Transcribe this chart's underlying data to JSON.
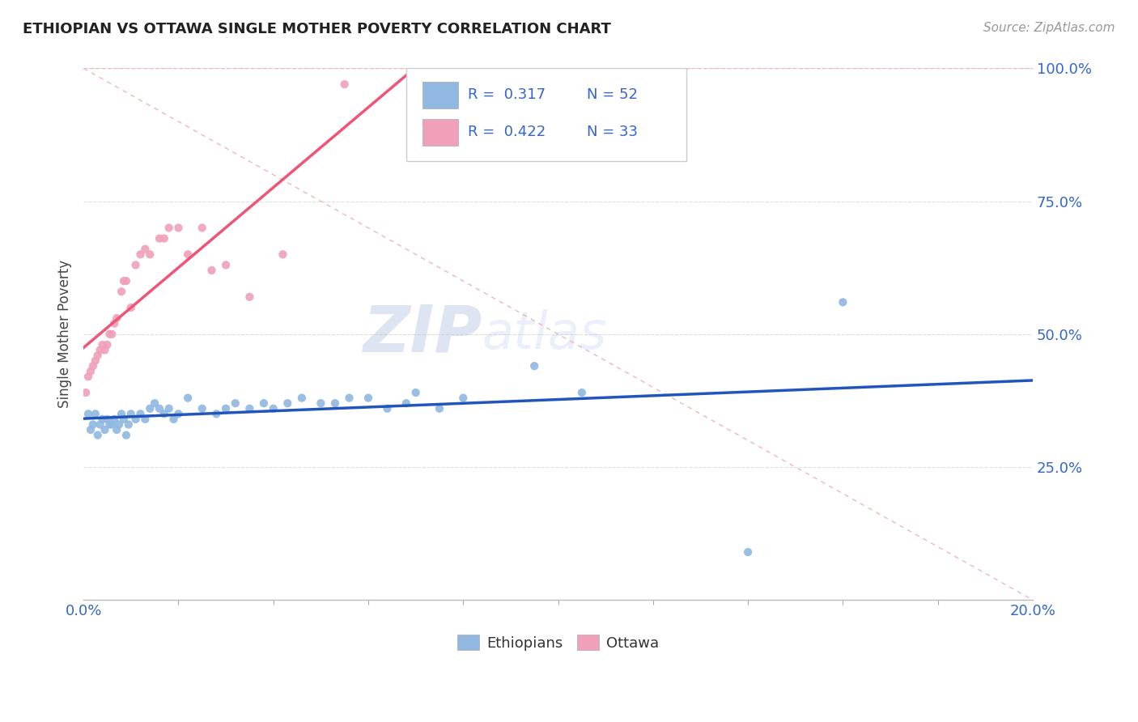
{
  "title": "ETHIOPIAN VS OTTAWA SINGLE MOTHER POVERTY CORRELATION CHART",
  "source": "Source: ZipAtlas.com",
  "ylabel": "Single Mother Poverty",
  "legend_label1": "Ethiopians",
  "legend_label2": "Ottawa",
  "r1": 0.317,
  "n1": 52,
  "r2": 0.422,
  "n2": 33,
  "color_blue": "#90B8E0",
  "color_pink": "#F0A0B8",
  "color_blue_line": "#2255BB",
  "color_pink_line": "#EE5577",
  "color_diag": "#EEB8B8",
  "watermark_zip": "ZIP",
  "watermark_atlas": "atlas",
  "xlim": [
    0.0,
    20.0
  ],
  "ylim": [
    0.0,
    100.0
  ],
  "ethiopians_x": [
    0.1,
    0.15,
    0.2,
    0.25,
    0.3,
    0.35,
    0.4,
    0.45,
    0.5,
    0.55,
    0.6,
    0.65,
    0.7,
    0.75,
    0.8,
    0.85,
    0.9,
    0.95,
    1.0,
    1.1,
    1.2,
    1.3,
    1.4,
    1.5,
    1.6,
    1.7,
    1.8,
    1.9,
    2.0,
    2.2,
    2.5,
    2.8,
    3.0,
    3.2,
    3.5,
    3.8,
    4.0,
    4.3,
    4.6,
    5.0,
    5.3,
    5.6,
    6.0,
    6.4,
    6.8,
    7.0,
    7.5,
    8.0,
    9.5,
    10.5,
    14.0,
    16.0
  ],
  "ethiopians_y": [
    35,
    32,
    33,
    35,
    31,
    33,
    34,
    32,
    34,
    33,
    33,
    34,
    32,
    33,
    35,
    34,
    31,
    33,
    35,
    34,
    35,
    34,
    36,
    37,
    36,
    35,
    36,
    34,
    35,
    38,
    36,
    35,
    36,
    37,
    36,
    37,
    36,
    37,
    38,
    37,
    37,
    38,
    38,
    36,
    37,
    39,
    36,
    38,
    44,
    39,
    9,
    56
  ],
  "ottawa_x": [
    0.05,
    0.1,
    0.15,
    0.2,
    0.25,
    0.3,
    0.35,
    0.4,
    0.45,
    0.5,
    0.55,
    0.6,
    0.65,
    0.7,
    0.8,
    0.85,
    0.9,
    1.0,
    1.1,
    1.2,
    1.3,
    1.4,
    1.6,
    1.7,
    1.8,
    2.0,
    2.2,
    2.5,
    2.7,
    3.0,
    3.5,
    4.2,
    5.5
  ],
  "ottawa_y": [
    39,
    42,
    43,
    44,
    45,
    46,
    47,
    48,
    47,
    48,
    50,
    50,
    52,
    53,
    58,
    60,
    60,
    55,
    63,
    65,
    66,
    65,
    68,
    68,
    70,
    70,
    65,
    70,
    62,
    63,
    57,
    65,
    97
  ],
  "yticks": [
    25,
    50,
    75,
    100
  ],
  "ytick_labels": [
    "25.0%",
    "50.0%",
    "75.0%",
    "100.0%"
  ]
}
